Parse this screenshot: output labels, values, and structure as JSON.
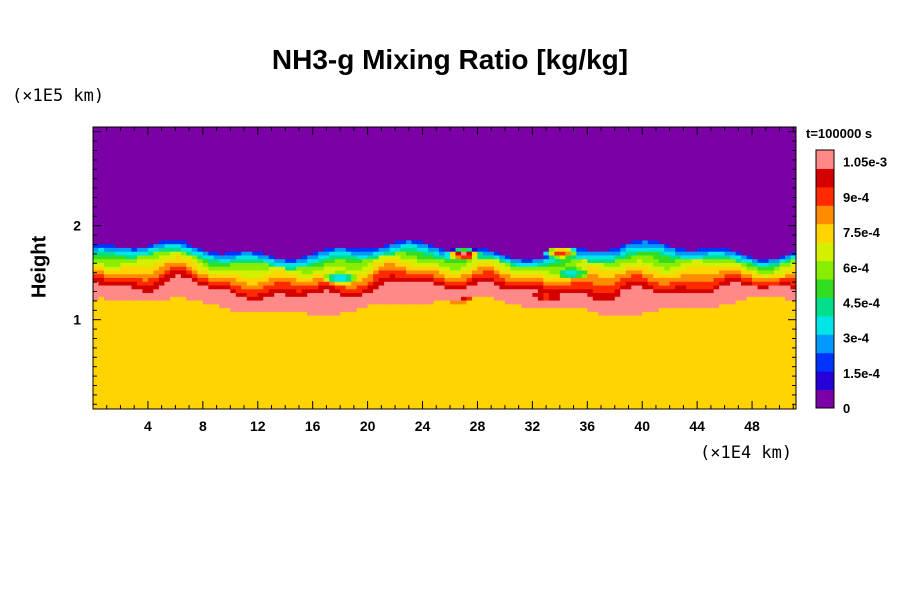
{
  "chart_data": {
    "type": "heatmap",
    "title": "NH3-g Mixing Ratio [kg/kg]",
    "ylabel": "Height",
    "y_unit": "(×1E5 km)",
    "x_unit": "(×1E4 km)",
    "time_label": "t=100000 s",
    "x_ticks": [
      4,
      8,
      12,
      16,
      20,
      24,
      28,
      32,
      36,
      40,
      44,
      48
    ],
    "x_tick_labels": [
      "4",
      "8",
      "12",
      "16",
      "20",
      "24",
      "28",
      "32",
      "36",
      "40",
      "44",
      "48"
    ],
    "y_ticks": [
      1,
      2
    ],
    "y_tick_labels": [
      "1",
      "2"
    ],
    "xlim": [
      0,
      51.2
    ],
    "ylim": [
      0.05,
      3.05
    ],
    "colorbar": {
      "range": [
        0,
        0.0011
      ],
      "ticks": [
        0,
        0.00015,
        0.0003,
        0.00045,
        0.0006,
        0.00075,
        0.0009,
        0.00105
      ],
      "tick_labels": [
        "0",
        "1.5e-4",
        "3e-4",
        "4.5e-4",
        "6e-4",
        "7.5e-4",
        "9e-4",
        "1.05e-3"
      ],
      "colors": [
        "#7b00a6",
        "#2600d9",
        "#0033ff",
        "#0099ff",
        "#00e5e5",
        "#00e08c",
        "#33dd22",
        "#88ee00",
        "#d4f000",
        "#ffd400",
        "#ff8c00",
        "#ff2a00",
        "#d40000",
        "#ff8888"
      ]
    },
    "field": {
      "upper_value": 0.0,
      "lower_value": 0.00078,
      "cloud_top_height": 1.75,
      "cloud_base_height": 1.15,
      "cloud_mean_value": 0.00055,
      "features": [
        {
          "x": 26.5,
          "y": 1.25,
          "value": 0.00105
        },
        {
          "x": 27.0,
          "y": 1.7,
          "value": 0.00105
        },
        {
          "x": 33.0,
          "y": 1.25,
          "value": 0.00092
        },
        {
          "x": 45.0,
          "y": 1.25,
          "value": 0.0011
        },
        {
          "x": 34.0,
          "y": 1.72,
          "value": 0.00095
        },
        {
          "x": 18.0,
          "y": 1.45,
          "value": 0.0003
        },
        {
          "x": 35.0,
          "y": 1.5,
          "value": 0.00035
        }
      ]
    }
  }
}
